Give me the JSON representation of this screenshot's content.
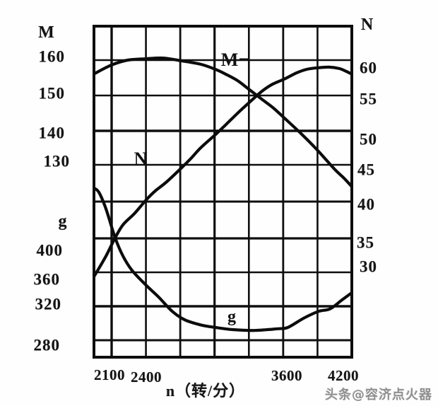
{
  "watermark": "头条@容济点火器",
  "chart_data": {
    "type": "line",
    "title": "",
    "xlabel": "n（转/分）",
    "x_axis": {
      "tick_labels": [
        "2100",
        "2400",
        "3600",
        "4200"
      ],
      "gridline_values": [
        2100,
        2400,
        2700,
        3000,
        3300,
        3600,
        3900,
        4200
      ],
      "range": [
        1950,
        4200
      ],
      "grid": true
    },
    "left_axis_top": {
      "label": "M",
      "tick_labels": [
        "160",
        "150",
        "140",
        "130"
      ],
      "tick_values": [
        160,
        150,
        140,
        130
      ]
    },
    "left_axis_bottom": {
      "label": "g",
      "tick_labels": [
        "400",
        "360",
        "320",
        "280"
      ],
      "tick_values": [
        400,
        360,
        320,
        280
      ]
    },
    "right_axis": {
      "label": "N",
      "tick_labels": [
        "60",
        "55",
        "50",
        "45",
        "40",
        "35",
        "30"
      ],
      "tick_values": [
        60,
        55,
        50,
        45,
        40,
        35,
        30
      ]
    },
    "series": [
      {
        "name": "M",
        "label": "M",
        "axis": "M",
        "points": [
          [
            1950,
            156.1
          ],
          [
            2100,
            158.6
          ],
          [
            2240,
            160.0
          ],
          [
            2400,
            160.4
          ],
          [
            2550,
            160.6
          ],
          [
            2710,
            159.8
          ],
          [
            2880,
            158.8
          ],
          [
            3010,
            157.3
          ],
          [
            3100,
            155.9
          ],
          [
            3200,
            154.1
          ],
          [
            3300,
            151.6
          ],
          [
            3410,
            148.8
          ],
          [
            3510,
            146.3
          ],
          [
            3610,
            143.3
          ],
          [
            3750,
            139.0
          ],
          [
            3900,
            134.0
          ],
          [
            4050,
            128.5
          ],
          [
            4130,
            126.0
          ],
          [
            4200,
            123.5
          ]
        ]
      },
      {
        "name": "N",
        "label": "N",
        "axis": "N",
        "points": [
          [
            1950,
            29.2
          ],
          [
            2050,
            32.0
          ],
          [
            2130,
            34.6
          ],
          [
            2200,
            36.5
          ],
          [
            2300,
            38.1
          ],
          [
            2400,
            40.0
          ],
          [
            2480,
            41.3
          ],
          [
            2580,
            42.6
          ],
          [
            2710,
            44.6
          ],
          [
            2790,
            45.9
          ],
          [
            2880,
            47.5
          ],
          [
            3010,
            49.4
          ],
          [
            3100,
            50.8
          ],
          [
            3200,
            52.4
          ],
          [
            3300,
            53.9
          ],
          [
            3410,
            55.5
          ],
          [
            3500,
            56.5
          ],
          [
            3610,
            57.3
          ],
          [
            3720,
            58.2
          ],
          [
            3810,
            58.7
          ],
          [
            3900,
            58.9
          ],
          [
            4000,
            59.0
          ],
          [
            4090,
            58.8
          ],
          [
            4150,
            58.4
          ],
          [
            4200,
            58.0
          ]
        ]
      },
      {
        "name": "g",
        "label": "g",
        "axis": "g",
        "points": [
          [
            1950,
            459
          ],
          [
            1990,
            454
          ],
          [
            2050,
            435
          ],
          [
            2130,
            401
          ],
          [
            2200,
            379
          ],
          [
            2280,
            362
          ],
          [
            2400,
            345
          ],
          [
            2510,
            331
          ],
          [
            2630,
            314
          ],
          [
            2740,
            304
          ],
          [
            2880,
            298
          ],
          [
            3010,
            295
          ],
          [
            3160,
            292.5
          ],
          [
            3350,
            291.5
          ],
          [
            3550,
            293.5
          ],
          [
            3640,
            295
          ],
          [
            3780,
            306
          ],
          [
            3910,
            314
          ],
          [
            4010,
            317
          ],
          [
            4110,
            327
          ],
          [
            4190,
            335
          ]
        ]
      }
    ]
  }
}
